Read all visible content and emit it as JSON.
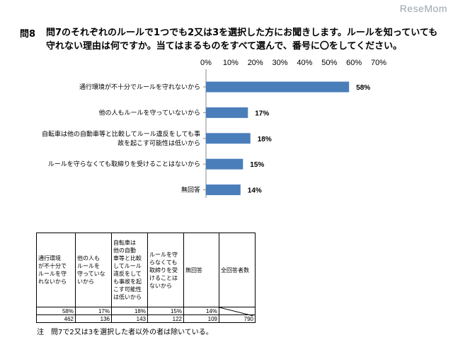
{
  "watermark": "ReseMom",
  "question": {
    "number": "問8",
    "text": "問7のそれぞれのルールで1つでも2又は3を選択した方にお聞きします。ルールを知っていても守れない理由は何ですか。当てはまるものをすべて選んで、番号に〇をしてください。"
  },
  "chart_data": {
    "type": "bar",
    "orientation": "horizontal",
    "title": "",
    "categories": [
      "通行環境が不十分でルールを守れないから",
      "他の人もルールを守っていないから",
      "自転車は他の自動車等と比較してルール違反をしても事故を起こす可能性は低いから",
      "ルールを守らなくても取締りを受けることはないから",
      "無回答"
    ],
    "category_lines": [
      [
        "通行環境が不十分でルールを守れないから"
      ],
      [
        "他の人もルールを守っていないから"
      ],
      [
        "自転車は他の自動車等と比較してルール違反をしても事",
        "故を起こす可能性は低いから"
      ],
      [
        "ルールを守らなくても取締りを受けることはないから"
      ],
      [
        "無回答"
      ]
    ],
    "values": [
      58,
      17,
      18,
      15,
      14
    ],
    "data_labels": [
      "58%",
      "17%",
      "18%",
      "15%",
      "14%"
    ],
    "xlim": [
      0,
      70
    ],
    "x_ticks": [
      "0%",
      "10%",
      "20%",
      "30%",
      "40%",
      "50%",
      "60%",
      "70%"
    ],
    "bar_color": "#4a7ebb",
    "xlabel": "",
    "ylabel": ""
  },
  "table": {
    "headers": [
      [
        "通行環境",
        "が不十分で",
        "ルールを守",
        "れないから"
      ],
      [
        "他の人も",
        "ルールを",
        "守っていな",
        "いから"
      ],
      [
        "自転車は",
        "他の自動",
        "車等と比較",
        "してルール",
        "違反をして",
        "も事故を起",
        "こす可能性",
        "は低いから"
      ],
      [
        "ルールを守",
        "らなくても",
        "取締りを受",
        "けることは",
        "ないから"
      ],
      [
        "無回答"
      ],
      [
        "全回答者数"
      ]
    ],
    "percent_row": [
      "58%",
      "17%",
      "18%",
      "15%",
      "14%"
    ],
    "count_row": [
      "462",
      "136",
      "143",
      "122",
      "109",
      "790"
    ]
  },
  "note": "注　問7で2又は3を選択した者以外の者は除いている。"
}
